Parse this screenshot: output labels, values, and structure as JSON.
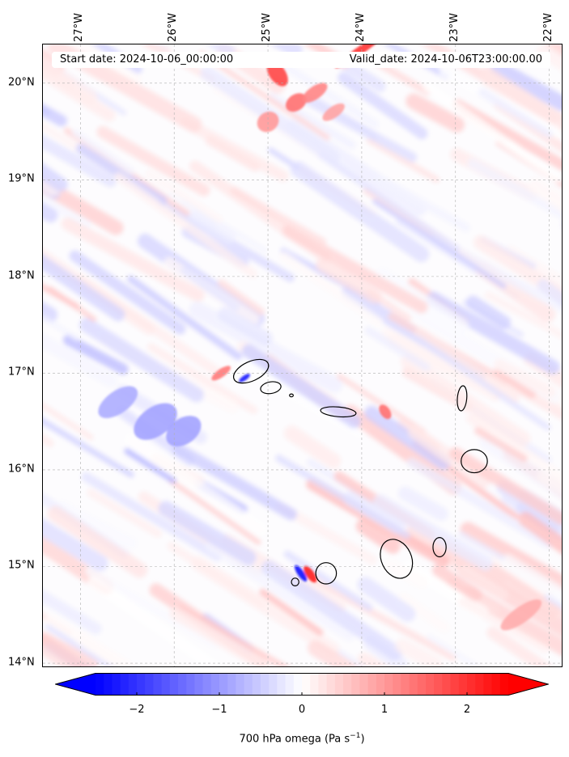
{
  "map": {
    "type": "filled-contour",
    "projection": "PlateCarree",
    "field": "700 hPa omega",
    "lat_range": [
      13.95,
      20.4
    ],
    "lon_range": [
      -27.4,
      -21.85
    ],
    "lat_ticks": [
      {
        "value": 14,
        "label": "14°N"
      },
      {
        "value": 15,
        "label": "15°N"
      },
      {
        "value": 16,
        "label": "16°N"
      },
      {
        "value": 17,
        "label": "17°N"
      },
      {
        "value": 18,
        "label": "18°N"
      },
      {
        "value": 19,
        "label": "19°N"
      },
      {
        "value": 20,
        "label": "20°N"
      }
    ],
    "lon_ticks": [
      {
        "value": -27,
        "label": "27°W"
      },
      {
        "value": -26,
        "label": "26°W"
      },
      {
        "value": -25,
        "label": "25°W"
      },
      {
        "value": -24,
        "label": "24°W"
      },
      {
        "value": -23,
        "label": "23°W"
      },
      {
        "value": -22,
        "label": "22°W"
      }
    ],
    "gridlines": true,
    "coastlines": true,
    "colors": {
      "negative": "#0000ff",
      "zero": "#ffffff",
      "positive": "#ff0000",
      "coastline": "#000000"
    }
  },
  "info": {
    "start_date": "Start date: 2024-10-06_00:00:00",
    "valid_date": "Valid_date: 2024-10-06T23:00:00.00"
  },
  "colorbar": {
    "cmap": "bwr",
    "vmin": -2.5,
    "vmax": 2.5,
    "extend": "both",
    "ticks": [
      {
        "value": -2,
        "label": "−2"
      },
      {
        "value": -1,
        "label": "−1"
      },
      {
        "value": 0,
        "label": "0"
      },
      {
        "value": 1,
        "label": "1"
      },
      {
        "value": 2,
        "label": "2"
      }
    ],
    "label": "700 hPa omega (Pa s",
    "label_sup": "−1",
    "label_end": ")"
  }
}
